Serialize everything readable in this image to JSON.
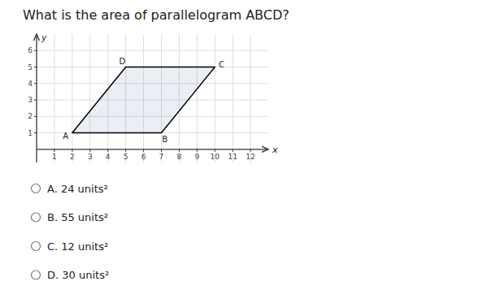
{
  "chart_data": {
    "type": "polygon",
    "title": "What is the area of parallelogram ABCD?",
    "point_labels": [
      "A",
      "B",
      "C",
      "D"
    ],
    "x": [
      2,
      7,
      10,
      5
    ],
    "values": [
      1,
      1,
      5,
      5
    ],
    "color": "#000000",
    "x_label": "x",
    "y_label": "y",
    "xlim": [
      0,
      13
    ],
    "ylim": [
      -0.8,
      7
    ],
    "xticks": [
      1,
      2,
      3,
      4,
      5,
      6,
      7,
      8,
      9,
      10,
      11,
      12
    ],
    "yticks": [
      1,
      2,
      3,
      4,
      5,
      6
    ],
    "grid": true,
    "annotations": [
      "A. 24 units²",
      "B. 55 units²",
      "C. 12 units²",
      "D. 30 units²"
    ]
  }
}
